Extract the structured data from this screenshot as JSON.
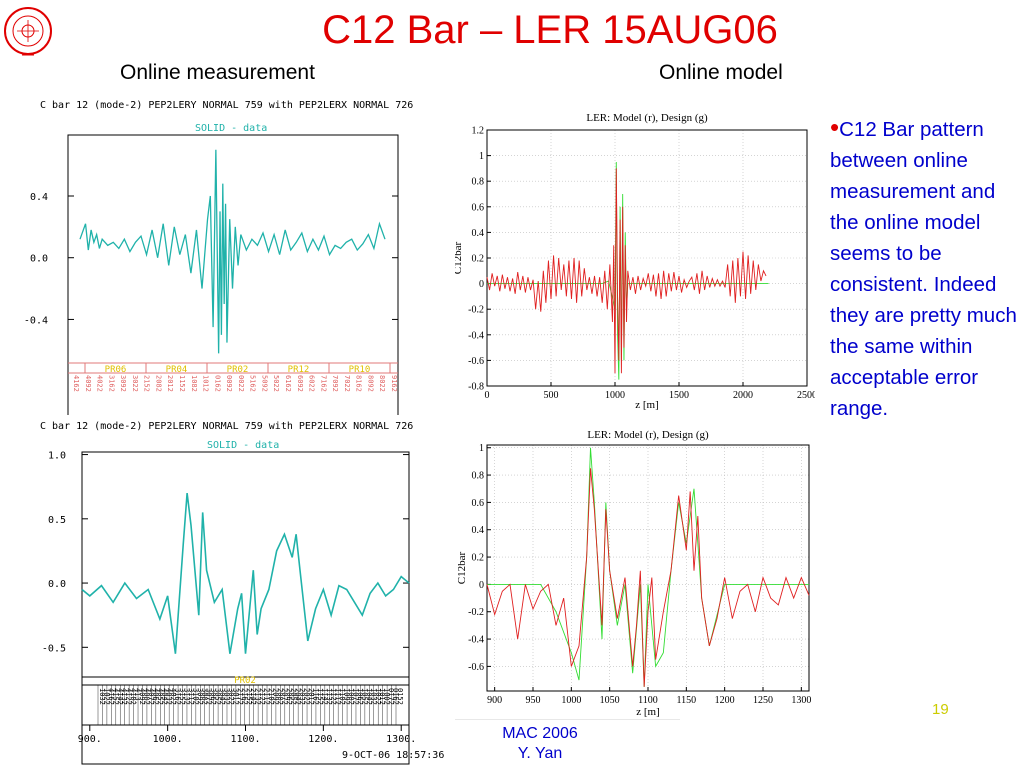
{
  "slide": {
    "title": "C12 Bar – LER 15AUG06",
    "left_heading": "Online measurement",
    "right_heading": "Online model",
    "bullet": "C12 Bar pattern between online measurement and the online model seems to be consistent. Indeed they are pretty much the same within acceptable error range.",
    "page_number": "19",
    "footer_line1": "MAC 2006",
    "footer_line2": "Y. Yan",
    "colors": {
      "title": "#e00000",
      "text": "#0000cc",
      "measurement": "#20b2aa",
      "model": "#e02020",
      "design": "#33dd33"
    }
  },
  "chart_data": [
    {
      "type": "line",
      "header": "C bar 12 (mode-2) PEP2LERY NORMAL  759 with PEP2LERX NORMAL  726",
      "legend": "SOLID  - data",
      "yticks": [
        "0.4",
        "0.0",
        "-0.4"
      ],
      "ylim": [
        -0.65,
        0.75
      ],
      "xlim": [
        0,
        2200
      ],
      "region_labels": [
        "PR06",
        "PR04",
        "PR02",
        "PR12",
        "PR10"
      ],
      "bpm_labels": [
        "4162",
        "4092",
        "4022",
        "3162",
        "3092",
        "3022",
        "2152",
        "2082",
        "2012",
        "1152",
        "1082",
        "1012",
        "0162",
        "0092",
        "0022",
        "5162",
        "5092",
        "5022",
        "6162",
        "6092",
        "6022",
        "7162",
        "7092",
        "7022",
        "8162",
        "8092",
        "8022",
        "9162"
      ],
      "series": [
        {
          "x": [
            0,
            40,
            60,
            80,
            100,
            120,
            140,
            160,
            200,
            240,
            280,
            320,
            360,
            400,
            440,
            480,
            520,
            560,
            600,
            640,
            680,
            720,
            760,
            800,
            840,
            880,
            920,
            940,
            960,
            980,
            1000,
            1010,
            1020,
            1030,
            1040,
            1050,
            1060,
            1080,
            1100,
            1120,
            1140,
            1160,
            1200,
            1240,
            1280,
            1320,
            1360,
            1400,
            1440,
            1480,
            1520,
            1560,
            1600,
            1640,
            1680,
            1720,
            1760,
            1800,
            1840,
            1880,
            1920,
            1960,
            2000,
            2040,
            2080,
            2120,
            2160,
            2200
          ],
          "y": [
            0.12,
            0.22,
            0.05,
            0.18,
            0.1,
            0.15,
            0.06,
            0.12,
            0.08,
            0.1,
            0.06,
            0.12,
            0.04,
            0.1,
            0.14,
            0.02,
            0.18,
            0.0,
            0.22,
            -0.05,
            0.2,
            0.02,
            0.15,
            -0.1,
            0.18,
            -0.2,
            0.25,
            0.4,
            -0.45,
            0.7,
            -0.62,
            0.3,
            -0.5,
            0.48,
            -0.3,
            0.35,
            -0.55,
            0.25,
            -0.2,
            0.2,
            -0.05,
            0.15,
            0.05,
            0.12,
            0.08,
            0.16,
            0.04,
            0.15,
            0.02,
            0.18,
            0.05,
            0.1,
            0.16,
            0.04,
            0.12,
            0.05,
            0.14,
            0.02,
            0.08,
            0.06,
            0.1,
            0.12,
            0.05,
            0.09,
            0.15,
            0.06,
            0.22,
            0.12
          ]
        }
      ]
    },
    {
      "type": "line",
      "header": "C bar 12 (mode-2) PEP2LERY NORMAL  759 with PEP2LERX NORMAL  726",
      "legend": "SOLID  - data",
      "yticks": [
        "1.0",
        "0.5",
        "0.0",
        "-0.5"
      ],
      "ylim": [
        -0.7,
        1.02
      ],
      "xticks": [
        "900.",
        "1000.",
        "1100.",
        "1200.",
        "1300."
      ],
      "xlim": [
        890,
        1310
      ],
      "region_labels": [
        "PR02"
      ],
      "timestamp": "9-OCT-06 18:57:36",
      "bpm_labels": [
        "1032",
        "1022",
        "4162",
        "4152",
        "4142",
        "4132",
        "4122",
        "4102",
        "413.",
        "4092",
        "4082",
        "4072",
        "4062",
        "4052",
        "4042",
        "4032",
        "4022",
        "3162",
        "3152",
        "3132",
        "3112",
        "3102",
        "3092",
        "3082",
        "3072",
        "3062",
        "3052",
        "3042",
        "3032",
        "3022",
        "3012",
        "2172",
        "2162",
        "2152",
        "2142",
        "2132",
        "2122",
        "2112",
        "2102",
        "2092",
        "2082",
        "2072",
        "2062",
        "2052",
        "2042",
        "2032",
        "2022",
        "2012",
        "1162",
        "1152",
        "1142",
        "1132",
        "1122",
        "1112",
        "1102",
        "1092",
        "1082",
        "1072",
        "1062",
        "1052",
        "1042",
        "1032",
        "1022",
        "1012",
        "1002",
        "0172",
        "0162",
        "0152"
      ],
      "series": [
        {
          "x": [
            890,
            900,
            915,
            930,
            945,
            960,
            975,
            990,
            1000,
            1010,
            1020,
            1025,
            1030,
            1040,
            1045,
            1050,
            1060,
            1070,
            1080,
            1090,
            1095,
            1100,
            1110,
            1115,
            1120,
            1130,
            1140,
            1150,
            1160,
            1165,
            1170,
            1180,
            1190,
            1200,
            1210,
            1220,
            1230,
            1240,
            1250,
            1260,
            1270,
            1280,
            1290,
            1300,
            1310
          ],
          "y": [
            -0.05,
            -0.1,
            -0.02,
            -0.15,
            0.0,
            -0.12,
            -0.05,
            -0.28,
            -0.1,
            -0.55,
            0.3,
            0.7,
            0.45,
            -0.25,
            0.55,
            0.1,
            -0.15,
            -0.05,
            -0.55,
            -0.2,
            -0.08,
            -0.55,
            0.1,
            -0.4,
            -0.2,
            -0.05,
            0.25,
            0.38,
            0.2,
            0.38,
            0.1,
            -0.45,
            -0.2,
            -0.05,
            -0.25,
            -0.02,
            -0.05,
            -0.15,
            -0.25,
            -0.08,
            0.0,
            -0.1,
            -0.05,
            0.05,
            0.0
          ]
        }
      ]
    },
    {
      "type": "line",
      "title": "LER: Model (r), Design (g)",
      "xlabel": "z [m]",
      "ylabel": "C12bar",
      "xlim": [
        0,
        2500
      ],
      "ylim": [
        -0.8,
        1.2
      ],
      "xticks": [
        0,
        500,
        1000,
        1500,
        2000,
        2500
      ],
      "yticks": [
        -0.8,
        -0.6,
        -0.4,
        -0.2,
        0,
        0.2,
        0.4,
        0.6,
        0.8,
        1,
        1.2
      ],
      "grid": true,
      "series": [
        {
          "name": "Model",
          "color": "#e02020",
          "x": [
            0,
            20,
            40,
            60,
            80,
            100,
            120,
            140,
            160,
            180,
            200,
            220,
            240,
            260,
            280,
            300,
            320,
            340,
            360,
            380,
            400,
            420,
            440,
            460,
            480,
            500,
            520,
            540,
            560,
            580,
            600,
            620,
            640,
            660,
            680,
            700,
            720,
            740,
            760,
            780,
            800,
            820,
            840,
            860,
            880,
            900,
            920,
            940,
            960,
            980,
            990,
            1000,
            1010,
            1020,
            1030,
            1040,
            1050,
            1060,
            1070,
            1080,
            1090,
            1100,
            1120,
            1140,
            1160,
            1180,
            1200,
            1220,
            1240,
            1260,
            1280,
            1300,
            1320,
            1340,
            1360,
            1380,
            1400,
            1420,
            1440,
            1460,
            1480,
            1500,
            1520,
            1540,
            1560,
            1580,
            1600,
            1620,
            1640,
            1660,
            1680,
            1700,
            1720,
            1740,
            1760,
            1780,
            1800,
            1820,
            1840,
            1860,
            1880,
            1900,
            1920,
            1940,
            1960,
            1980,
            2000,
            2020,
            2040,
            2060,
            2080,
            2100,
            2120,
            2140,
            2160,
            2180
          ],
          "y": [
            0.05,
            -0.05,
            0.08,
            -0.02,
            0.06,
            -0.06,
            0.07,
            -0.04,
            0.05,
            -0.06,
            0.04,
            -0.08,
            0.09,
            -0.05,
            0.06,
            -0.07,
            0.05,
            -0.05,
            0.03,
            -0.2,
            0.02,
            -0.22,
            0.1,
            -0.15,
            0.18,
            -0.12,
            0.22,
            -0.1,
            0.2,
            -0.05,
            0.15,
            -0.1,
            0.18,
            -0.12,
            0.2,
            -0.15,
            0.18,
            -0.1,
            0.12,
            -0.05,
            0.05,
            -0.08,
            0.06,
            -0.1,
            0.05,
            -0.15,
            0.1,
            -0.2,
            0.15,
            -0.3,
            0.3,
            -0.7,
            0.9,
            -0.1,
            -0.6,
            0.5,
            -0.7,
            0.6,
            -0.5,
            0.3,
            -0.3,
            0.1,
            -0.05,
            0.05,
            -0.08,
            0.06,
            -0.05,
            0.04,
            -0.02,
            0.08,
            -0.06,
            0.07,
            -0.1,
            0.08,
            -0.12,
            0.1,
            -0.1,
            0.08,
            -0.06,
            0.09,
            -0.05,
            0.06,
            -0.07,
            0.03,
            -0.03,
            0.02,
            0.05,
            -0.05,
            0.08,
            -0.08,
            0.1,
            -0.05,
            0.06,
            -0.03,
            0.04,
            -0.02,
            0.03,
            -0.02,
            0.02,
            -0.03,
            0.15,
            -0.1,
            0.18,
            -0.15,
            0.2,
            -0.1,
            0.25,
            -0.12,
            0.22,
            -0.08,
            0.18,
            -0.05,
            0.15,
            0.02,
            0.1,
            0.06
          ]
        },
        {
          "name": "Design",
          "color": "#33dd33",
          "x": [
            0,
            900,
            950,
            1000,
            1010,
            1020,
            1030,
            1040,
            1050,
            1060,
            1070,
            1080,
            1090,
            1100,
            1200,
            2200
          ],
          "y": [
            0,
            0,
            0.02,
            -0.2,
            0.95,
            -0.4,
            -0.75,
            0.6,
            -0.6,
            0.7,
            -0.6,
            0.4,
            -0.2,
            0,
            0,
            0
          ]
        }
      ]
    },
    {
      "type": "line",
      "title": "LER: Model (r), Design (g)",
      "xlabel": "z [m]",
      "ylabel": "C12bar",
      "xlim": [
        890,
        1310
      ],
      "ylim": [
        -0.78,
        1.02
      ],
      "xticks": [
        900,
        950,
        1000,
        1050,
        1100,
        1150,
        1200,
        1250,
        1300
      ],
      "yticks": [
        -0.6,
        -0.4,
        -0.2,
        0,
        0.2,
        0.4,
        0.6,
        0.8,
        1
      ],
      "grid": true,
      "series": [
        {
          "name": "Model",
          "color": "#e02020",
          "x": [
            890,
            900,
            910,
            920,
            930,
            940,
            950,
            960,
            970,
            980,
            990,
            1000,
            1010,
            1020,
            1025,
            1030,
            1040,
            1045,
            1050,
            1060,
            1070,
            1080,
            1085,
            1090,
            1095,
            1100,
            1105,
            1110,
            1120,
            1130,
            1140,
            1150,
            1155,
            1160,
            1165,
            1170,
            1180,
            1190,
            1200,
            1210,
            1220,
            1230,
            1240,
            1250,
            1260,
            1270,
            1280,
            1290,
            1300,
            1310
          ],
          "y": [
            0,
            -0.22,
            -0.05,
            0.0,
            -0.4,
            0.0,
            -0.18,
            -0.05,
            0.0,
            -0.3,
            -0.1,
            -0.6,
            -0.45,
            0.2,
            0.85,
            0.55,
            -0.3,
            0.55,
            0.1,
            -0.25,
            0.05,
            -0.6,
            -0.3,
            0.1,
            -0.75,
            -0.2,
            0.05,
            -0.55,
            -0.2,
            0.1,
            0.65,
            0.25,
            0.68,
            0.1,
            0.5,
            -0.1,
            -0.45,
            -0.25,
            0.05,
            -0.25,
            -0.05,
            0.0,
            -0.2,
            0.05,
            -0.1,
            -0.15,
            0.05,
            -0.1,
            0.05,
            -0.08
          ]
        },
        {
          "name": "Design",
          "color": "#33dd33",
          "x": [
            890,
            940,
            960,
            980,
            1000,
            1010,
            1020,
            1025,
            1030,
            1040,
            1045,
            1050,
            1060,
            1070,
            1080,
            1090,
            1095,
            1100,
            1110,
            1120,
            1130,
            1140,
            1150,
            1160,
            1170,
            1180,
            1200,
            1310
          ],
          "y": [
            0,
            0,
            0,
            -0.2,
            -0.5,
            -0.7,
            0.2,
            1.0,
            0.6,
            -0.4,
            0.6,
            0.1,
            -0.3,
            0.0,
            -0.65,
            0.0,
            -0.75,
            0.0,
            -0.6,
            -0.5,
            0.1,
            0.6,
            0.3,
            0.7,
            -0.1,
            -0.45,
            0,
            0
          ]
        }
      ]
    }
  ]
}
